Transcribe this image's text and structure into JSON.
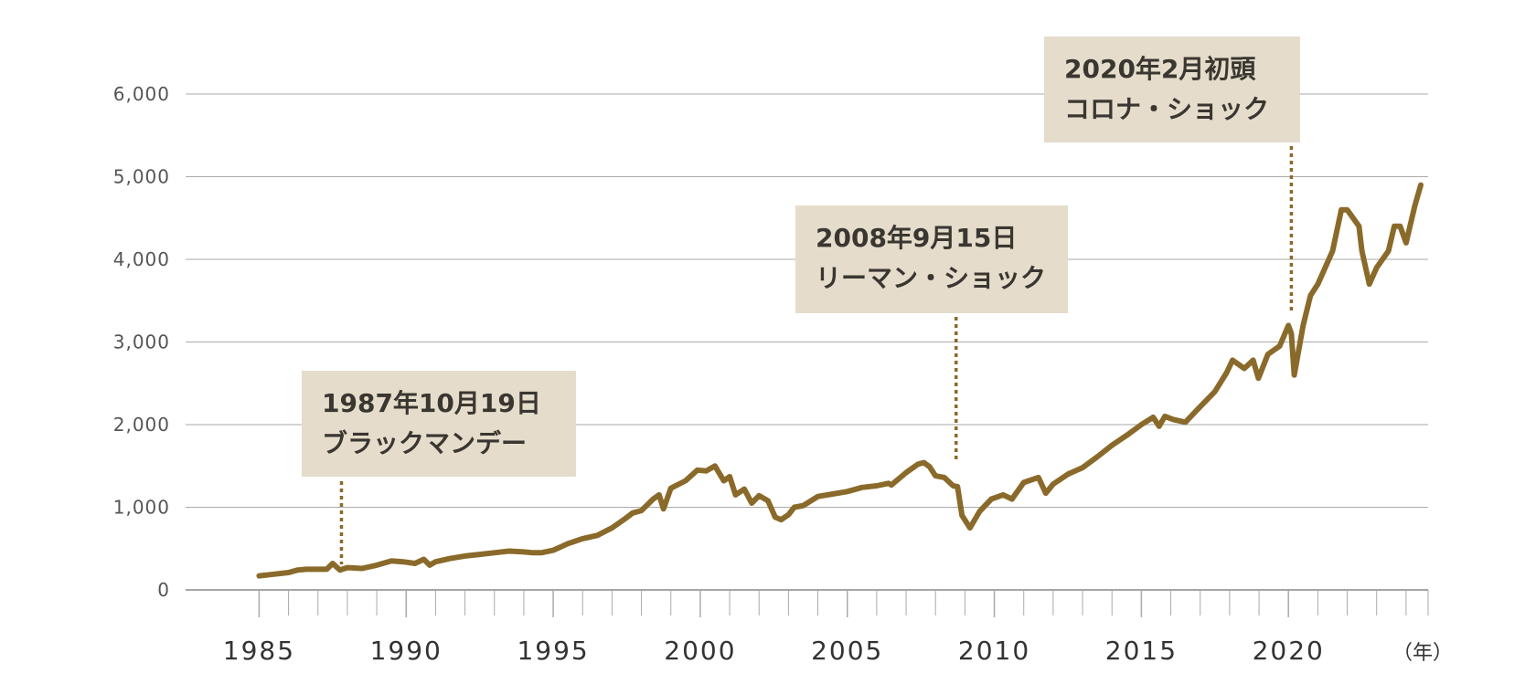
{
  "chart_data": {
    "type": "line",
    "x_unit_label": "（年）",
    "x_ticks": [
      1985,
      1990,
      1995,
      2000,
      2005,
      2010,
      2015,
      2020
    ],
    "y_ticks": [
      0,
      1000,
      2000,
      3000,
      4000,
      5000,
      6000
    ],
    "y_tick_labels": [
      "0",
      "1,000",
      "2,000",
      "3,000",
      "4,000",
      "5,000",
      "6,000"
    ],
    "xlim": [
      1982.5,
      2024.75
    ],
    "ylim": [
      0,
      6000
    ],
    "grid": true,
    "colors": {
      "line": "#8a6a2a",
      "grid": "#aaaaaa",
      "annotation_fill": "#e5dccb",
      "annotation_text": "#3a3630",
      "leader": "#8a6a2a"
    },
    "series": [
      {
        "x": [
          1985.0,
          1985.5,
          1986.0,
          1986.3,
          1986.6,
          1987.0,
          1987.3,
          1987.5,
          1987.75,
          1987.83,
          1988.0,
          1988.5,
          1989.0,
          1989.5,
          1989.9,
          1990.3,
          1990.6,
          1990.8,
          1991.0,
          1991.5,
          1992.0,
          1992.5,
          1993.0,
          1993.5,
          1994.0,
          1994.3,
          1994.6,
          1995.0,
          1995.5,
          1996.0,
          1996.5,
          1997.0,
          1997.4,
          1997.7,
          1998.0,
          1998.4,
          1998.6,
          1998.75,
          1999.0,
          1999.5,
          1999.9,
          2000.2,
          2000.5,
          2000.8,
          2001.0,
          2001.2,
          2001.5,
          2001.75,
          2002.0,
          2002.3,
          2002.55,
          2002.75,
          2003.0,
          2003.2,
          2003.5,
          2004.0,
          2004.5,
          2005.0,
          2005.5,
          2006.0,
          2006.4,
          2006.5,
          2007.0,
          2007.4,
          2007.6,
          2007.8,
          2008.0,
          2008.3,
          2008.6,
          2008.75,
          2008.9,
          2009.17,
          2009.5,
          2009.9,
          2010.3,
          2010.6,
          2011.0,
          2011.5,
          2011.75,
          2012.0,
          2012.5,
          2013.0,
          2013.5,
          2014.0,
          2014.5,
          2015.0,
          2015.4,
          2015.6,
          2015.8,
          2016.1,
          2016.5,
          2016.9,
          2017.5,
          2017.9,
          2018.1,
          2018.5,
          2018.8,
          2018.98,
          2019.3,
          2019.7,
          2020.0,
          2020.1,
          2020.2,
          2020.5,
          2020.75,
          2021.0,
          2021.5,
          2021.8,
          2022.0,
          2022.4,
          2022.5,
          2022.75,
          2023.0,
          2023.4,
          2023.6,
          2023.8,
          2024.0,
          2024.3,
          2024.5
        ],
        "y": [
          170,
          190,
          210,
          240,
          250,
          250,
          250,
          320,
          240,
          250,
          270,
          260,
          300,
          350,
          340,
          320,
          370,
          300,
          340,
          380,
          410,
          430,
          450,
          470,
          460,
          450,
          450,
          480,
          560,
          620,
          660,
          750,
          850,
          930,
          960,
          1100,
          1150,
          980,
          1230,
          1320,
          1450,
          1440,
          1500,
          1320,
          1370,
          1150,
          1220,
          1050,
          1140,
          1080,
          880,
          850,
          910,
          1000,
          1020,
          1130,
          1160,
          1190,
          1240,
          1260,
          1290,
          1270,
          1420,
          1520,
          1540,
          1490,
          1380,
          1360,
          1260,
          1250,
          900,
          750,
          950,
          1100,
          1150,
          1100,
          1300,
          1360,
          1170,
          1280,
          1400,
          1480,
          1610,
          1750,
          1870,
          2000,
          2090,
          1980,
          2100,
          2060,
          2030,
          2180,
          2400,
          2630,
          2780,
          2680,
          2780,
          2560,
          2850,
          2950,
          3200,
          3100,
          2600,
          3200,
          3560,
          3700,
          4100,
          4600,
          4600,
          4400,
          4100,
          3700,
          3900,
          4100,
          4400,
          4400,
          4200,
          4650,
          4900
        ]
      }
    ],
    "annotations": [
      {
        "line1": "1987年10月19日",
        "line2": "ブラックマンデー",
        "x": 1987.8
      },
      {
        "line1": "2008年9月15日",
        "line2": "リーマン・ショック",
        "x": 2008.7
      },
      {
        "line1": "2020年2月初頭",
        "line2": "コロナ・ショック",
        "x": 2020.1
      }
    ]
  }
}
